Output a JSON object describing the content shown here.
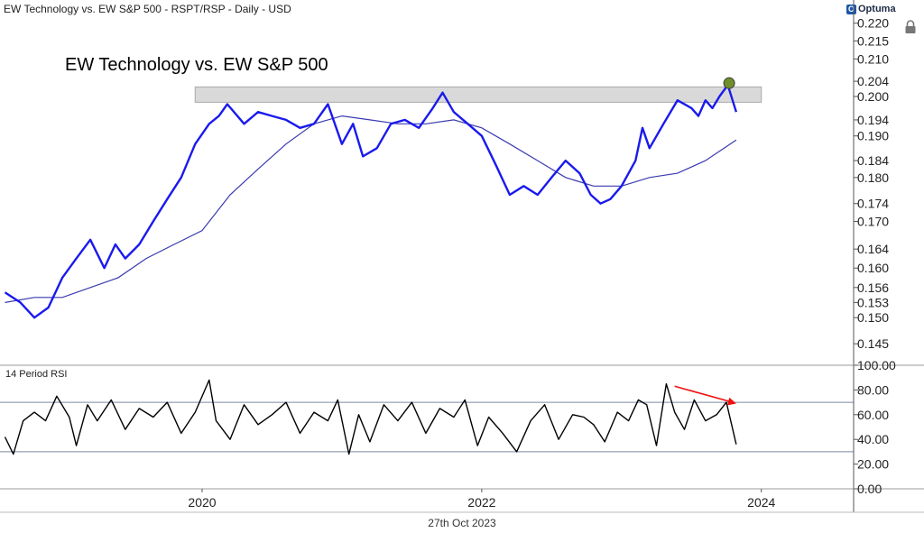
{
  "header": {
    "title": "EW Technology vs. EW S&P 500 - RSPT/RSP - Daily - USD",
    "brand": "Optuma",
    "brand_mark": "O"
  },
  "footer": {
    "date": "27th Oct 2023"
  },
  "colors": {
    "price_line": "#1a1aee",
    "moving_average": "#3a3ab0",
    "rsi_line": "#000000",
    "resistance_zone": "#d9d9d9",
    "divergence_arrow": "#ee1111",
    "highlight_dot": "#6f8f2a",
    "axis": "#555555",
    "level_lines": "#7a8aa0"
  },
  "icons": {
    "lock": "lock-icon",
    "logo": "optuma-logo-icon"
  },
  "chart_data": [
    {
      "type": "line",
      "title": "EW Technology vs. EW S&P 500",
      "xlabel": "",
      "ylabel": "",
      "y_scale": "log",
      "ylim": [
        0.141,
        0.222
      ],
      "y_ticks": [
        "0.145",
        "0.150",
        "0.153",
        "0.156",
        "0.160",
        "0.164",
        "0.170",
        "0.174",
        "0.180",
        "0.184",
        "0.190",
        "0.194",
        "0.200",
        "0.204",
        "0.210",
        "0.215",
        "0.220"
      ],
      "x_ticks": [
        "2020",
        "2022",
        "2024"
      ],
      "x_tick_positions": [
        2020.0,
        2022.0,
        2024.0
      ],
      "xlim": [
        2018.58,
        2024.66
      ],
      "grid": false,
      "series": [
        {
          "kind": "price",
          "x": [
            2018.59,
            2018.7,
            2018.8,
            2018.9,
            2019.0,
            2019.1,
            2019.2,
            2019.3,
            2019.38,
            2019.45,
            2019.55,
            2019.65,
            2019.75,
            2019.85,
            2019.95,
            2020.05,
            2020.12,
            2020.18,
            2020.3,
            2020.4,
            2020.5,
            2020.6,
            2020.7,
            2020.8,
            2020.9,
            2021.0,
            2021.08,
            2021.15,
            2021.25,
            2021.35,
            2021.45,
            2021.55,
            2021.65,
            2021.72,
            2021.8,
            2021.9,
            2022.0,
            2022.1,
            2022.2,
            2022.3,
            2022.4,
            2022.5,
            2022.6,
            2022.7,
            2022.78,
            2022.85,
            2022.92,
            2023.0,
            2023.1,
            2023.15,
            2023.2,
            2023.3,
            2023.4,
            2023.5,
            2023.55,
            2023.6,
            2023.65,
            2023.7,
            2023.76,
            2023.82
          ],
          "y": [
            0.155,
            0.153,
            0.15,
            0.152,
            0.158,
            0.162,
            0.166,
            0.16,
            0.165,
            0.162,
            0.165,
            0.17,
            0.175,
            0.18,
            0.188,
            0.193,
            0.195,
            0.198,
            0.193,
            0.196,
            0.195,
            0.194,
            0.192,
            0.193,
            0.198,
            0.188,
            0.193,
            0.185,
            0.187,
            0.193,
            0.194,
            0.192,
            0.197,
            0.201,
            0.196,
            0.193,
            0.19,
            0.183,
            0.176,
            0.178,
            0.176,
            0.18,
            0.184,
            0.181,
            0.176,
            0.174,
            0.175,
            0.178,
            0.184,
            0.192,
            0.187,
            0.193,
            0.199,
            0.197,
            0.195,
            0.199,
            0.197,
            0.2,
            0.203,
            0.196
          ]
        },
        {
          "kind": "moving_average",
          "x": [
            2018.59,
            2018.8,
            2019.0,
            2019.2,
            2019.4,
            2019.6,
            2019.8,
            2020.0,
            2020.2,
            2020.4,
            2020.6,
            2020.8,
            2021.0,
            2021.2,
            2021.4,
            2021.6,
            2021.8,
            2022.0,
            2022.2,
            2022.4,
            2022.6,
            2022.8,
            2023.0,
            2023.2,
            2023.4,
            2023.6,
            2023.82
          ],
          "y": [
            0.153,
            0.154,
            0.154,
            0.156,
            0.158,
            0.162,
            0.165,
            0.168,
            0.176,
            0.182,
            0.188,
            0.193,
            0.195,
            0.194,
            0.193,
            0.193,
            0.194,
            0.192,
            0.188,
            0.184,
            0.18,
            0.178,
            0.178,
            0.18,
            0.181,
            0.184,
            0.189
          ]
        }
      ],
      "annotations": [
        {
          "kind": "resistance_zone",
          "x": [
            2019.95,
            2024.0
          ],
          "y": [
            0.1985,
            0.2025
          ]
        },
        {
          "kind": "highlight_dot",
          "x": 2023.77,
          "y": 0.2035
        }
      ]
    },
    {
      "type": "line",
      "title": "14 Period RSI",
      "ylim": [
        0,
        100
      ],
      "y_ticks": [
        "0.00",
        "20.00",
        "40.00",
        "60.00",
        "80.00",
        "100.00"
      ],
      "levels": [
        30,
        70
      ],
      "grid": false,
      "series": [
        {
          "name": "14 Period RSI",
          "x": [
            2018.59,
            2018.65,
            2018.72,
            2018.8,
            2018.88,
            2018.96,
            2019.05,
            2019.1,
            2019.18,
            2019.25,
            2019.35,
            2019.45,
            2019.55,
            2019.65,
            2019.75,
            2019.85,
            2019.95,
            2020.05,
            2020.1,
            2020.2,
            2020.3,
            2020.4,
            2020.5,
            2020.6,
            2020.7,
            2020.8,
            2020.9,
            2020.97,
            2021.05,
            2021.12,
            2021.2,
            2021.3,
            2021.4,
            2021.5,
            2021.6,
            2021.7,
            2021.8,
            2021.88,
            2021.97,
            2022.05,
            2022.15,
            2022.25,
            2022.35,
            2022.45,
            2022.55,
            2022.65,
            2022.73,
            2022.8,
            2022.88,
            2022.97,
            2023.05,
            2023.12,
            2023.18,
            2023.25,
            2023.32,
            2023.38,
            2023.45,
            2023.52,
            2023.6,
            2023.68,
            2023.75,
            2023.82
          ],
          "y": [
            42,
            28,
            55,
            62,
            55,
            75,
            58,
            35,
            68,
            55,
            72,
            48,
            65,
            58,
            70,
            45,
            62,
            88,
            55,
            40,
            68,
            52,
            60,
            70,
            45,
            62,
            55,
            72,
            28,
            60,
            38,
            68,
            55,
            70,
            45,
            65,
            58,
            72,
            35,
            58,
            45,
            30,
            55,
            68,
            40,
            60,
            58,
            52,
            38,
            62,
            55,
            72,
            68,
            35,
            85,
            62,
            48,
            72,
            55,
            60,
            70,
            36
          ]
        }
      ],
      "annotations": [
        {
          "kind": "divergence_arrow",
          "x": [
            2023.38,
            2023.82
          ],
          "y": [
            83,
            69
          ]
        }
      ]
    }
  ]
}
